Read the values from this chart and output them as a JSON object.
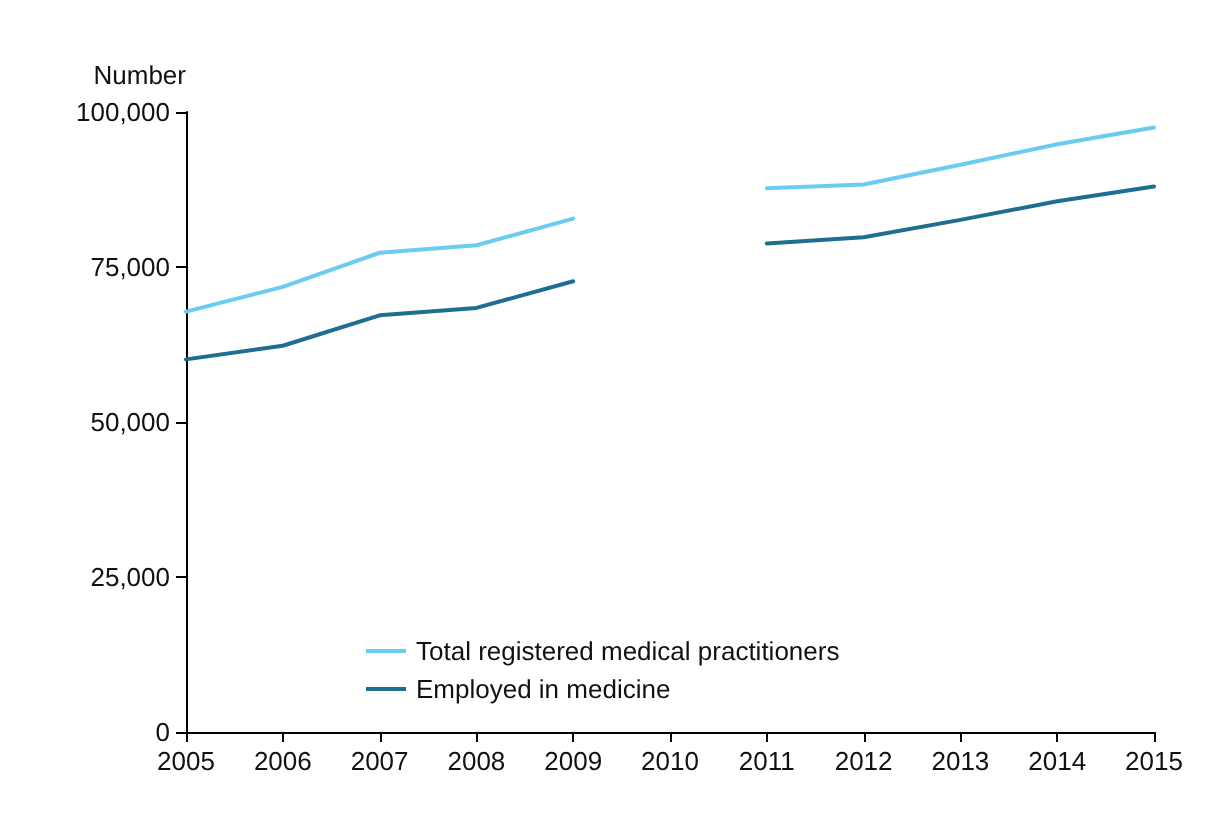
{
  "chart_data": {
    "type": "line",
    "ylabel": "Number",
    "categories": [
      "2005",
      "2006",
      "2007",
      "2008",
      "2009",
      "2010",
      "2011",
      "2012",
      "2013",
      "2014",
      "2015"
    ],
    "series": [
      {
        "name": "Total registered medical practitioners",
        "color": "#6ccbf1",
        "values": [
          67800,
          71800,
          77300,
          78500,
          82800,
          null,
          87700,
          88300,
          91500,
          94800,
          97500
        ]
      },
      {
        "name": "Employed in medicine",
        "color": "#1f6d91",
        "values": [
          60100,
          62300,
          67200,
          68400,
          72700,
          null,
          78800,
          79800,
          82600,
          85600,
          88000
        ]
      }
    ],
    "ylim": [
      0,
      100000
    ],
    "yticks": [
      0,
      {
        "value": 25000,
        "label": "25,000"
      },
      {
        "value": 50000,
        "label": "50,000"
      },
      {
        "value": 75000,
        "label": "75,000"
      },
      {
        "value": 100000,
        "label": "100,000"
      }
    ],
    "grid": false,
    "legend": "bottom",
    "marker": "none",
    "line_style": "solid"
  }
}
